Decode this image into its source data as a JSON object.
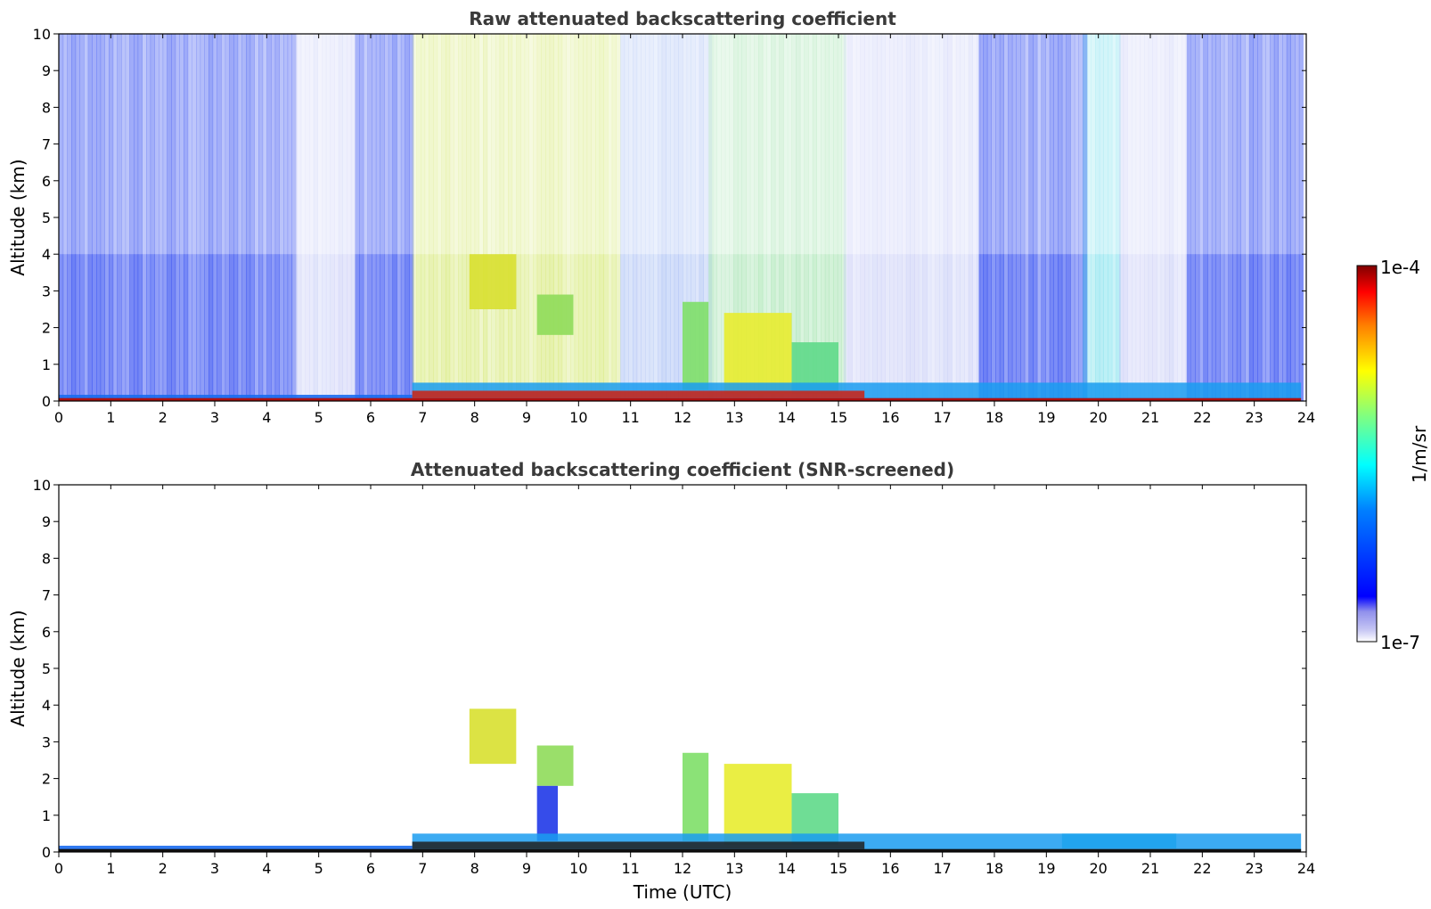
{
  "chart_data": [
    {
      "type": "heatmap",
      "title": "Raw attenuated backscattering coefficient",
      "xlabel": "",
      "ylabel": "Altitude (km)",
      "xlim": [
        0,
        24
      ],
      "ylim": [
        0,
        10
      ],
      "xticks": [
        "0",
        "1",
        "2",
        "3",
        "4",
        "5",
        "6",
        "7",
        "8",
        "9",
        "10",
        "11",
        "12",
        "13",
        "14",
        "15",
        "16",
        "17",
        "18",
        "19",
        "20",
        "21",
        "22",
        "23",
        "24"
      ],
      "yticks": [
        "0",
        "1",
        "2",
        "3",
        "4",
        "5",
        "6",
        "7",
        "8",
        "9",
        "10"
      ],
      "colorscale": "jet",
      "surface_layer": {
        "top_km_before_7h": 0.12,
        "top_km_after_7h": 0.5
      },
      "noise_regions": [
        {
          "t_start": 0.0,
          "t_end": 4.5,
          "tone": "dense-blue"
        },
        {
          "t_start": 4.5,
          "t_end": 5.7,
          "tone": "sparse-blue"
        },
        {
          "t_start": 5.7,
          "t_end": 6.8,
          "tone": "dense-blue"
        },
        {
          "t_start": 6.8,
          "t_end": 10.8,
          "tone": "yellow-green"
        },
        {
          "t_start": 10.8,
          "t_end": 12.5,
          "tone": "mixed"
        },
        {
          "t_start": 12.5,
          "t_end": 15.1,
          "tone": "green"
        },
        {
          "t_start": 15.1,
          "t_end": 17.7,
          "tone": "sparse-blue"
        },
        {
          "t_start": 17.7,
          "t_end": 19.7,
          "tone": "dense-blue"
        },
        {
          "t_start": 19.7,
          "t_end": 20.4,
          "tone": "cyan"
        },
        {
          "t_start": 20.4,
          "t_end": 21.7,
          "tone": "sparse-blue"
        },
        {
          "t_start": 21.7,
          "t_end": 23.9,
          "tone": "dense-blue"
        }
      ],
      "cloud_features": [
        {
          "t_start": 7.9,
          "t_end": 8.8,
          "z_bottom": 2.5,
          "z_top": 4.0,
          "color": "#d8e030"
        },
        {
          "t_start": 9.2,
          "t_end": 9.9,
          "z_bottom": 1.8,
          "z_top": 2.9,
          "color": "#8fdc5a"
        },
        {
          "t_start": 12.0,
          "t_end": 12.5,
          "z_bottom": 0.3,
          "z_top": 2.7,
          "color": "#7edf68"
        },
        {
          "t_start": 12.8,
          "t_end": 14.1,
          "z_bottom": 0.2,
          "z_top": 2.4,
          "color": "#e8ec30"
        },
        {
          "t_start": 14.1,
          "t_end": 15.0,
          "z_bottom": 0.2,
          "z_top": 1.6,
          "color": "#5fd98a"
        }
      ]
    },
    {
      "type": "heatmap",
      "title": "Attenuated backscattering coefficient (SNR-screened)",
      "xlabel": "Time (UTC)",
      "ylabel": "Altitude (km)",
      "xlim": [
        0,
        24
      ],
      "ylim": [
        0,
        10
      ],
      "xticks": [
        "0",
        "1",
        "2",
        "3",
        "4",
        "5",
        "6",
        "7",
        "8",
        "9",
        "10",
        "11",
        "12",
        "13",
        "14",
        "15",
        "16",
        "17",
        "18",
        "19",
        "20",
        "21",
        "22",
        "23",
        "24"
      ],
      "yticks": [
        "0",
        "1",
        "2",
        "3",
        "4",
        "5",
        "6",
        "7",
        "8",
        "9",
        "10"
      ],
      "colorscale": "jet",
      "cloud_features": [
        {
          "t_start": 7.9,
          "t_end": 8.8,
          "z_bottom": 2.4,
          "z_top": 3.9,
          "color": "#d8e030"
        },
        {
          "t_start": 9.2,
          "t_end": 9.9,
          "z_bottom": 1.8,
          "z_top": 2.9,
          "color": "#8fdc5a"
        },
        {
          "t_start": 9.2,
          "t_end": 9.6,
          "z_bottom": 0.3,
          "z_top": 1.8,
          "color": "#2038e8"
        },
        {
          "t_start": 12.0,
          "t_end": 12.5,
          "z_bottom": 0.3,
          "z_top": 2.7,
          "color": "#7edf68"
        },
        {
          "t_start": 12.8,
          "t_end": 14.1,
          "z_bottom": 0.2,
          "z_top": 2.4,
          "color": "#e8ec30"
        },
        {
          "t_start": 14.1,
          "t_end": 15.0,
          "z_bottom": 0.2,
          "z_top": 1.6,
          "color": "#5fd98a"
        },
        {
          "t_start": 19.3,
          "t_end": 21.5,
          "z_bottom": 0.1,
          "z_top": 0.5,
          "color": "#40c8e0"
        }
      ]
    }
  ],
  "colorbar": {
    "label": "1/m/sr",
    "max_label": "1e-4",
    "min_label": "1e-7",
    "scale": "log",
    "range": [
      1e-07,
      0.0001
    ],
    "colors": [
      "#ffffff",
      "#c8c8f4",
      "#9090ec",
      "#0000ff",
      "#0080ff",
      "#00ffff",
      "#80ff80",
      "#ffff00",
      "#ff8000",
      "#ff0000",
      "#800000"
    ]
  }
}
